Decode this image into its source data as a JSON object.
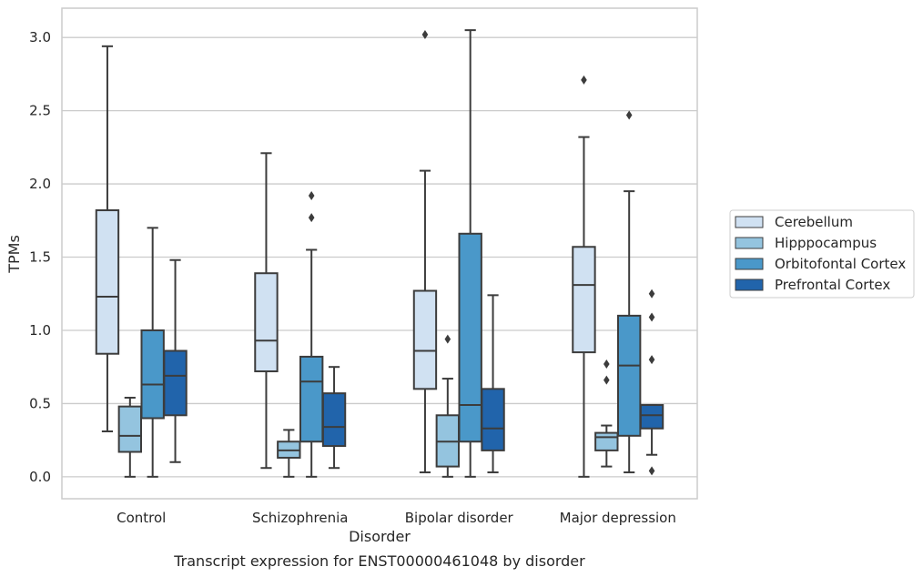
{
  "chart_data": {
    "type": "box",
    "xlabel": "Disorder",
    "ylabel": "TPMs",
    "caption": "Transcript expression for ENST00000461048 by disorder",
    "ylim": [
      -0.15,
      3.2
    ],
    "yticks": [
      "0.0",
      "0.5",
      "1.0",
      "1.5",
      "2.0",
      "2.5",
      "3.0"
    ],
    "grid": "horizontal",
    "legend_position": "right",
    "categories": [
      "Control",
      "Schizophrenia",
      "Bipolar disorder",
      "Major depression"
    ],
    "series": [
      {
        "name": "Cerebellum",
        "color": "#d0e1f2",
        "boxes": [
          {
            "whislo": 0.31,
            "q1": 0.84,
            "med": 1.23,
            "q3": 1.82,
            "whishi": 2.94,
            "fliers": []
          },
          {
            "whislo": 0.06,
            "q1": 0.72,
            "med": 0.93,
            "q3": 1.39,
            "whishi": 2.21,
            "fliers": []
          },
          {
            "whislo": 0.03,
            "q1": 0.6,
            "med": 0.86,
            "q3": 1.27,
            "whishi": 2.09,
            "fliers": [
              3.02
            ]
          },
          {
            "whislo": 0.0,
            "q1": 0.85,
            "med": 1.31,
            "q3": 1.57,
            "whishi": 2.32,
            "fliers": [
              2.71
            ]
          }
        ]
      },
      {
        "name": "Hipppocampus",
        "color": "#94c4df",
        "boxes": [
          {
            "whislo": 0.0,
            "q1": 0.17,
            "med": 0.28,
            "q3": 0.48,
            "whishi": 0.54,
            "fliers": []
          },
          {
            "whislo": 0.0,
            "q1": 0.13,
            "med": 0.18,
            "q3": 0.24,
            "whishi": 0.32,
            "fliers": []
          },
          {
            "whislo": 0.0,
            "q1": 0.07,
            "med": 0.24,
            "q3": 0.42,
            "whishi": 0.67,
            "fliers": [
              0.94
            ]
          },
          {
            "whislo": 0.07,
            "q1": 0.18,
            "med": 0.27,
            "q3": 0.3,
            "whishi": 0.35,
            "fliers": [
              0.66,
              0.77
            ]
          }
        ]
      },
      {
        "name": "Orbitofontal Cortex",
        "color": "#4a98c9",
        "boxes": [
          {
            "whislo": 0.0,
            "q1": 0.4,
            "med": 0.63,
            "q3": 1.0,
            "whishi": 1.7,
            "fliers": []
          },
          {
            "whislo": 0.0,
            "q1": 0.24,
            "med": 0.65,
            "q3": 0.82,
            "whishi": 1.55,
            "fliers": [
              1.77,
              1.92
            ]
          },
          {
            "whislo": 0.0,
            "q1": 0.24,
            "med": 0.49,
            "q3": 1.66,
            "whishi": 3.05,
            "fliers": []
          },
          {
            "whislo": 0.03,
            "q1": 0.28,
            "med": 0.76,
            "q3": 1.1,
            "whishi": 1.95,
            "fliers": [
              2.47
            ]
          }
        ]
      },
      {
        "name": "Prefrontal Cortex",
        "color": "#2164ab",
        "boxes": [
          {
            "whislo": 0.1,
            "q1": 0.42,
            "med": 0.69,
            "q3": 0.86,
            "whishi": 1.48,
            "fliers": []
          },
          {
            "whislo": 0.06,
            "q1": 0.21,
            "med": 0.34,
            "q3": 0.57,
            "whishi": 0.75,
            "fliers": []
          },
          {
            "whislo": 0.03,
            "q1": 0.18,
            "med": 0.33,
            "q3": 0.6,
            "whishi": 1.24,
            "fliers": []
          },
          {
            "whislo": 0.15,
            "q1": 0.33,
            "med": 0.42,
            "q3": 0.49,
            "whishi": 0.49,
            "fliers": [
              0.04,
              0.8,
              1.09,
              1.25
            ]
          }
        ]
      }
    ]
  }
}
